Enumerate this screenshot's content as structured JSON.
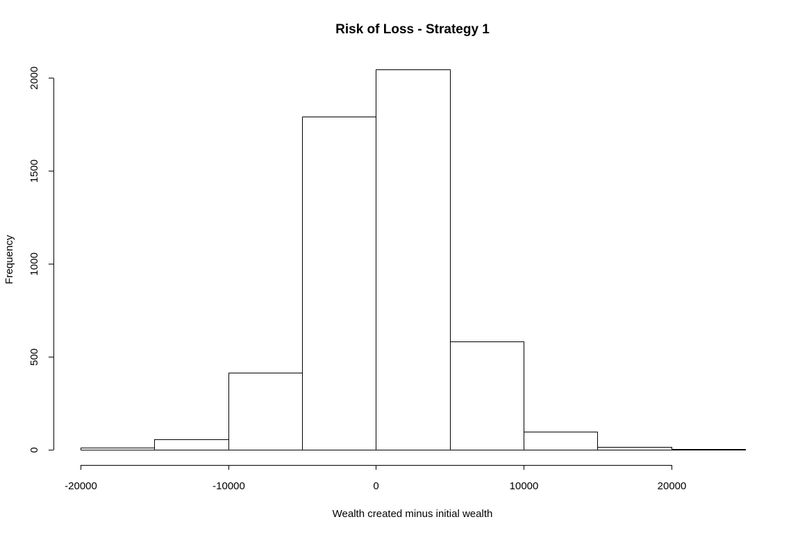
{
  "chart_data": {
    "type": "bar",
    "subtype": "histogram",
    "title": "Risk of Loss - Strategy 1",
    "xlabel": "Wealth created minus initial wealth",
    "ylabel": "Frequency",
    "bins": [
      {
        "start": -20000,
        "end": -15000,
        "count": 12
      },
      {
        "start": -15000,
        "end": -10000,
        "count": 57
      },
      {
        "start": -10000,
        "end": -5000,
        "count": 415
      },
      {
        "start": -5000,
        "end": 0,
        "count": 1790
      },
      {
        "start": 0,
        "end": 5000,
        "count": 2045
      },
      {
        "start": 5000,
        "end": 10000,
        "count": 582
      },
      {
        "start": 10000,
        "end": 15000,
        "count": 97
      },
      {
        "start": 15000,
        "end": 20000,
        "count": 15
      },
      {
        "start": 20000,
        "end": 25000,
        "count": 3
      }
    ],
    "xlim": [
      -20000,
      25000
    ],
    "ylim": [
      0,
      2045
    ],
    "x_ticks": [
      -20000,
      -10000,
      0,
      10000,
      20000
    ],
    "x_tick_labels": [
      "-20000",
      "-10000",
      "0",
      "10000",
      "20000"
    ],
    "y_ticks": [
      0,
      500,
      1000,
      1500,
      2000
    ],
    "y_tick_labels": [
      "0",
      "500",
      "1000",
      "1500",
      "2000"
    ],
    "grid": false,
    "legend": "none"
  }
}
